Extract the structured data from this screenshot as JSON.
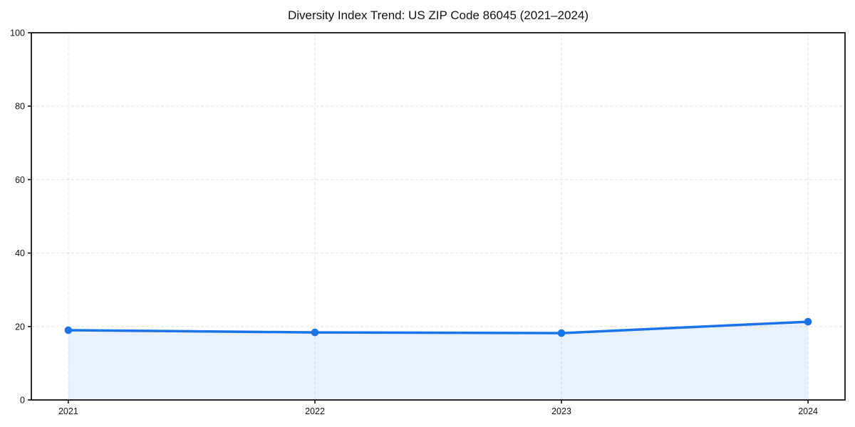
{
  "chart_data": {
    "type": "area",
    "title": "Diversity Index Trend: US ZIP Code 86045 (2021–2024)",
    "x": [
      2021,
      2022,
      2023,
      2024
    ],
    "series": [
      {
        "name": "Diversity Index",
        "values": [
          19.0,
          18.4,
          18.2,
          21.3
        ]
      }
    ],
    "xlabel": "",
    "ylabel": "",
    "xticks": [
      2021,
      2022,
      2023,
      2024
    ],
    "xtick_labels": [
      "2021",
      "2022",
      "2023",
      "2024"
    ],
    "yticks": [
      0,
      20,
      40,
      60,
      80,
      100
    ],
    "ytick_labels": [
      "0",
      "20",
      "40",
      "60",
      "80",
      "100"
    ],
    "ylim": [
      0,
      100
    ],
    "x_margin_fraction": 0.05,
    "grid": "both-dashed",
    "legend": "none",
    "marker": "circle",
    "colors": {
      "line": "#1a73e8",
      "marker": "#1a73e8",
      "area_fill": "rgba(26,115,232,0.10)",
      "grid": "#e2e2e2",
      "spine": "#111111",
      "tick_text": "#111111",
      "background": "#ffffff"
    }
  }
}
